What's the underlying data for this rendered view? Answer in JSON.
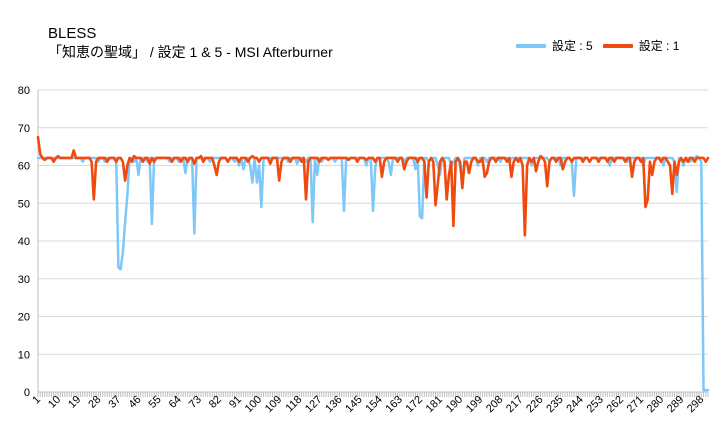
{
  "chart_data": {
    "type": "line",
    "title": "BLESS",
    "subtitle": "「知恵の聖域」 / 設定 1 & 5 - MSI Afterburner",
    "xlabel": "",
    "ylabel": "",
    "ylim": [
      0,
      80
    ],
    "yticks": [
      0,
      10,
      20,
      30,
      40,
      50,
      60,
      70,
      80
    ],
    "xlim": [
      1,
      301
    ],
    "xtick_labels": [
      "1",
      "10",
      "19",
      "28",
      "37",
      "46",
      "55",
      "64",
      "73",
      "82",
      "91",
      "100",
      "109",
      "118",
      "127",
      "136",
      "145",
      "154",
      "163",
      "172",
      "181",
      "190",
      "199",
      "208",
      "217",
      "226",
      "235",
      "244",
      "253",
      "262",
      "271",
      "280",
      "289",
      "298"
    ],
    "grid": true,
    "legend": "top-right",
    "series": [
      {
        "name": "設定 : 5",
        "color": "#7ec8f8",
        "baseline": 62,
        "dips": [
          [
            21,
            61
          ],
          [
            28,
            61
          ],
          [
            31,
            61
          ],
          [
            37,
            33
          ],
          [
            38,
            32.5
          ],
          [
            39,
            37
          ],
          [
            40,
            45
          ],
          [
            41,
            52
          ],
          [
            44,
            61
          ],
          [
            46,
            57.5
          ],
          [
            50,
            61
          ],
          [
            52,
            44.5
          ],
          [
            60,
            61
          ],
          [
            64,
            61
          ],
          [
            67,
            58
          ],
          [
            71,
            42
          ],
          [
            78,
            61
          ],
          [
            86,
            61
          ],
          [
            89,
            61
          ],
          [
            91,
            60
          ],
          [
            93,
            59
          ],
          [
            96,
            60
          ],
          [
            97,
            55.5
          ],
          [
            99,
            55.5
          ],
          [
            100,
            60
          ],
          [
            101,
            49
          ],
          [
            113,
            61
          ],
          [
            117,
            60.5
          ],
          [
            121,
            61
          ],
          [
            124,
            45
          ],
          [
            126,
            57.5
          ],
          [
            128,
            61
          ],
          [
            134,
            61
          ],
          [
            138,
            48
          ],
          [
            148,
            60
          ],
          [
            151,
            48
          ],
          [
            152,
            59.5
          ],
          [
            158,
            61
          ],
          [
            159,
            57.5
          ],
          [
            165,
            61
          ],
          [
            170,
            59
          ],
          [
            172,
            46.5
          ],
          [
            173,
            46
          ],
          [
            176,
            61
          ],
          [
            180,
            60
          ],
          [
            181,
            57.5
          ],
          [
            186,
            60
          ],
          [
            187,
            61
          ],
          [
            190,
            60
          ],
          [
            191,
            55.5
          ],
          [
            198,
            60
          ],
          [
            202,
            61
          ],
          [
            208,
            61
          ],
          [
            212,
            61
          ],
          [
            222,
            60
          ],
          [
            230,
            61
          ],
          [
            235,
            60
          ],
          [
            240,
            61
          ],
          [
            241,
            52
          ],
          [
            248,
            61
          ],
          [
            257,
            60
          ],
          [
            265,
            61
          ],
          [
            272,
            60
          ],
          [
            281,
            60
          ],
          [
            286,
            61
          ],
          [
            287,
            53
          ],
          [
            290,
            60
          ],
          [
            293,
            61
          ],
          [
            296,
            62.5
          ],
          [
            297,
            62
          ],
          [
            298,
            61
          ],
          [
            299,
            0.5
          ],
          [
            300,
            0.5
          ],
          [
            301,
            0.5
          ]
        ]
      },
      {
        "name": "設定 : 1",
        "color": "#f04a0f",
        "baseline": 62,
        "dips": [
          [
            1,
            67.5
          ],
          [
            2,
            63
          ],
          [
            3,
            62
          ],
          [
            4,
            61.5
          ],
          [
            8,
            61
          ],
          [
            10,
            62.5
          ],
          [
            14,
            62
          ],
          [
            16,
            62
          ],
          [
            17,
            64
          ],
          [
            18,
            62
          ],
          [
            25,
            61
          ],
          [
            26,
            51
          ],
          [
            27,
            61
          ],
          [
            32,
            61
          ],
          [
            33,
            62
          ],
          [
            36,
            61
          ],
          [
            39,
            61
          ],
          [
            40,
            56
          ],
          [
            41,
            60
          ],
          [
            43,
            61
          ],
          [
            44,
            62.5
          ],
          [
            48,
            61
          ],
          [
            51,
            60.5
          ],
          [
            53,
            61
          ],
          [
            61,
            61
          ],
          [
            65,
            61
          ],
          [
            68,
            61
          ],
          [
            70,
            62
          ],
          [
            71,
            60.5
          ],
          [
            74,
            62.5
          ],
          [
            75,
            61
          ],
          [
            80,
            60
          ],
          [
            81,
            57.5
          ],
          [
            82,
            61
          ],
          [
            86,
            61
          ],
          [
            91,
            61
          ],
          [
            95,
            61
          ],
          [
            97,
            62.5
          ],
          [
            100,
            61
          ],
          [
            105,
            60.5
          ],
          [
            109,
            56
          ],
          [
            110,
            61
          ],
          [
            114,
            61
          ],
          [
            119,
            61
          ],
          [
            121,
            51
          ],
          [
            122,
            61
          ],
          [
            127,
            61
          ],
          [
            131,
            61.5
          ],
          [
            140,
            61.5
          ],
          [
            144,
            61
          ],
          [
            148,
            61.5
          ],
          [
            152,
            61
          ],
          [
            155,
            57
          ],
          [
            156,
            61
          ],
          [
            162,
            61
          ],
          [
            165,
            59
          ],
          [
            166,
            61
          ],
          [
            171,
            61
          ],
          [
            174,
            61
          ],
          [
            175,
            51.5
          ],
          [
            176,
            61
          ],
          [
            178,
            61
          ],
          [
            179,
            49.5
          ],
          [
            180,
            55
          ],
          [
            181,
            61
          ],
          [
            183,
            61
          ],
          [
            184,
            51
          ],
          [
            185,
            57.5
          ],
          [
            186,
            61
          ],
          [
            187,
            44
          ],
          [
            188,
            61
          ],
          [
            190,
            61
          ],
          [
            191,
            54
          ],
          [
            192,
            61
          ],
          [
            193,
            61
          ],
          [
            194,
            58
          ],
          [
            195,
            61
          ],
          [
            198,
            61
          ],
          [
            199,
            61
          ],
          [
            201,
            57
          ],
          [
            202,
            58
          ],
          [
            203,
            61
          ],
          [
            206,
            61
          ],
          [
            211,
            61
          ],
          [
            213,
            57
          ],
          [
            214,
            61
          ],
          [
            216,
            61
          ],
          [
            218,
            60
          ],
          [
            219,
            41.5
          ],
          [
            220,
            60
          ],
          [
            222,
            61
          ],
          [
            224,
            58.5
          ],
          [
            225,
            61
          ],
          [
            226,
            62.5
          ],
          [
            228,
            61
          ],
          [
            229,
            54.5
          ],
          [
            230,
            61
          ],
          [
            233,
            61
          ],
          [
            236,
            59
          ],
          [
            237,
            61
          ],
          [
            240,
            61
          ],
          [
            245,
            61
          ],
          [
            248,
            61
          ],
          [
            252,
            61
          ],
          [
            256,
            61
          ],
          [
            259,
            61
          ],
          [
            264,
            61
          ],
          [
            267,
            57
          ],
          [
            268,
            61
          ],
          [
            271,
            61
          ],
          [
            273,
            49
          ],
          [
            274,
            51
          ],
          [
            275,
            61
          ],
          [
            276,
            57.5
          ],
          [
            277,
            61
          ],
          [
            280,
            61
          ],
          [
            283,
            61
          ],
          [
            284,
            60
          ],
          [
            285,
            52.5
          ],
          [
            286,
            61
          ],
          [
            287,
            57.5
          ],
          [
            288,
            61
          ],
          [
            290,
            61
          ],
          [
            292,
            61
          ],
          [
            295,
            61
          ],
          [
            300,
            61
          ],
          [
            301,
            62
          ]
        ]
      }
    ]
  }
}
